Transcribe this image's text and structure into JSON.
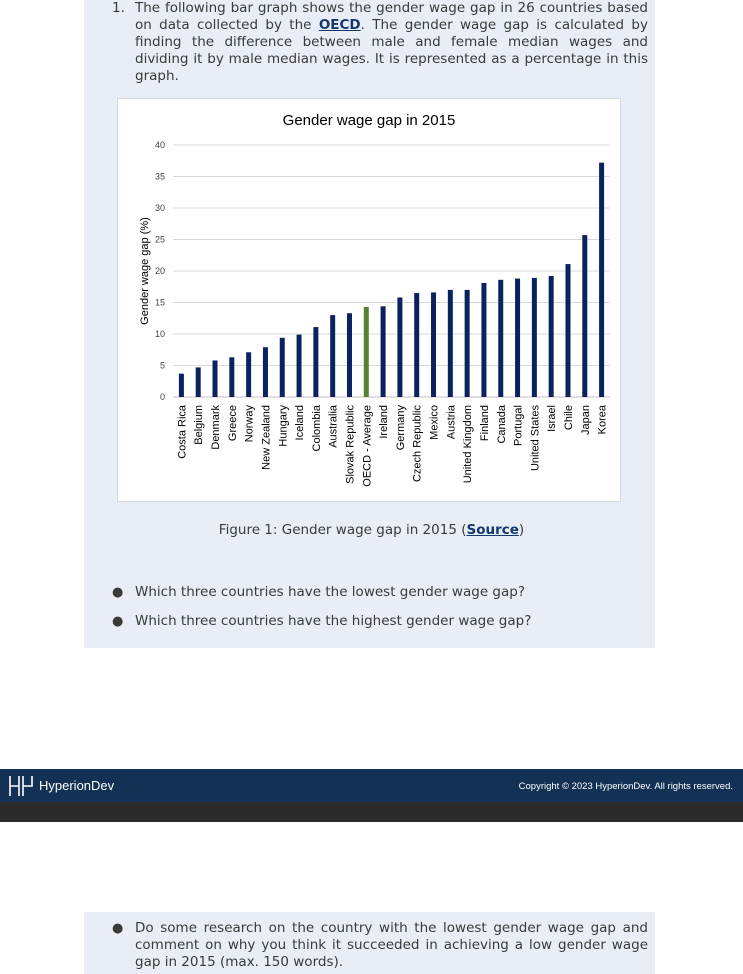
{
  "question": {
    "number": "1.",
    "text_before_link": "The following bar graph shows the gender wage gap in 26 countries based on data collected by the ",
    "link_text": "OECD",
    "text_after_link": ". The gender wage gap is calculated by finding the difference between male and female median wages and dividing it by male median wages. It is represented as a percentage in this graph."
  },
  "caption": {
    "prefix": "Figure 1: Gender wage gap in 2015 (",
    "link": "Source",
    "suffix": ")"
  },
  "bullets": [
    "Which three countries have the lowest gender wage gap?",
    "Which three countries have the highest gender wage gap?",
    "Do some research on the country with the lowest gender wage gap and comment on why you think it succeeded in achieving a low gender wage gap in 2015 (max. 150 words)."
  ],
  "footer": {
    "brand": "HyperionDev",
    "copyright": "Copyright © 2023 HyperionDev. All rights reserved.",
    "background": "#123154"
  },
  "colors": {
    "bar": "#0c2160",
    "highlight": "#548235",
    "link": "#13386e",
    "panel": "#e8edf6"
  },
  "chart_data": {
    "type": "bar",
    "title": "Gender wage gap in 2015",
    "xlabel": "",
    "ylabel": "Gender wage gap (%)",
    "ylim": [
      0,
      40
    ],
    "yticks": [
      0,
      5,
      10,
      15,
      20,
      25,
      30,
      35,
      40
    ],
    "grid": true,
    "legend": "none",
    "highlighted_category": "OECD - Average",
    "categories": [
      "Costa Rica",
      "Belgium",
      "Denmark",
      "Greece",
      "Norway",
      "New Zealand",
      "Hungary",
      "Iceland",
      "Colombia",
      "Australia",
      "Slovak Republic",
      "OECD - Average",
      "Ireland",
      "Germany",
      "Czech Republic",
      "Mexico",
      "Austria",
      "United Kingdom",
      "Finland",
      "Canada",
      "Portugal",
      "United States",
      "Israel",
      "Chile",
      "Japan",
      "Korea"
    ],
    "values": [
      3.7,
      4.7,
      5.8,
      6.3,
      7.1,
      7.9,
      9.4,
      9.9,
      11.1,
      13.0,
      13.3,
      14.3,
      14.4,
      15.8,
      16.5,
      16.6,
      17.0,
      17.0,
      18.1,
      18.6,
      18.8,
      18.9,
      19.2,
      21.1,
      25.7,
      37.2
    ]
  }
}
